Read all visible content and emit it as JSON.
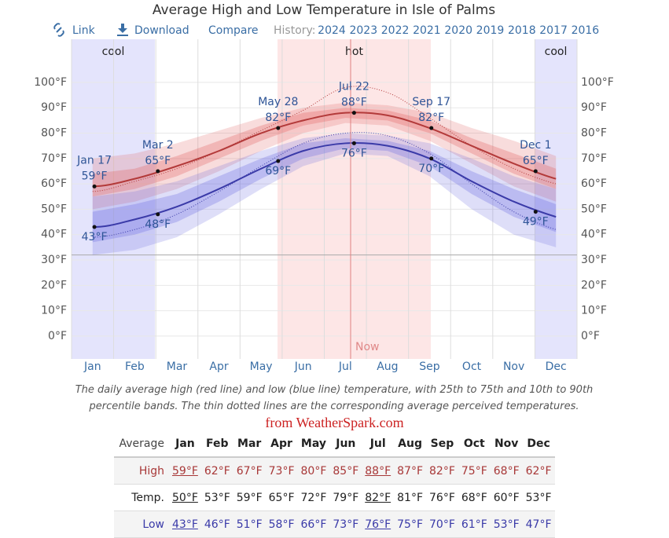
{
  "nav": {
    "link": "Link",
    "download": "Download",
    "compare": "Compare",
    "history": "History:",
    "years": [
      "2024",
      "2023",
      "2022",
      "2021",
      "2020",
      "2019",
      "2018",
      "2017",
      "2016"
    ]
  },
  "chart_data": {
    "type": "line",
    "title": "Average High and Low Temperature in Isle of Palms",
    "categories": [
      "Jan",
      "Feb",
      "Mar",
      "Apr",
      "May",
      "Jun",
      "Jul",
      "Aug",
      "Sep",
      "Oct",
      "Nov",
      "Dec"
    ],
    "ylim": [
      -9,
      117
    ],
    "yticks": [
      {
        "value": 0,
        "label": "0°F"
      },
      {
        "value": 10,
        "label": "10°F"
      },
      {
        "value": 20,
        "label": "20°F"
      },
      {
        "value": 30,
        "label": "30°F"
      },
      {
        "value": 40,
        "label": "40°F"
      },
      {
        "value": 50,
        "label": "50°F"
      },
      {
        "value": 60,
        "label": "60°F"
      },
      {
        "value": 70,
        "label": "70°F"
      },
      {
        "value": 80,
        "label": "80°F"
      },
      {
        "value": 90,
        "label": "90°F"
      },
      {
        "value": 100,
        "label": "100°F"
      }
    ],
    "grid": true,
    "seasons": [
      "cool",
      "hot",
      "cool"
    ],
    "now_label": "Now",
    "reference_line": 32,
    "series": [
      {
        "color": "#b33a3a",
        "band_color": "#e06060",
        "values": [
          59,
          62,
          67,
          73,
          80,
          85,
          88,
          87,
          82,
          75,
          68,
          62
        ],
        "p10": [
          50,
          53,
          58,
          65,
          73,
          80,
          84,
          83,
          77,
          68,
          59,
          53
        ],
        "p25": [
          55,
          58,
          63,
          70,
          77,
          83,
          86,
          85,
          80,
          72,
          64,
          58
        ],
        "p75": [
          64,
          66,
          71,
          77,
          83,
          88,
          90,
          89,
          85,
          78,
          72,
          66
        ],
        "p90": [
          70,
          72,
          76,
          81,
          86,
          90,
          92,
          91,
          88,
          82,
          77,
          71
        ],
        "perceived": [
          57,
          61,
          66,
          73,
          81,
          89,
          98,
          96,
          86,
          75,
          66,
          60
        ]
      },
      {
        "color": "#3a3aa8",
        "band_color": "#6a6ae0",
        "values": [
          43,
          46,
          51,
          58,
          66,
          73,
          76,
          75,
          70,
          61,
          53,
          47
        ],
        "p10": [
          32,
          34,
          39,
          48,
          58,
          67,
          72,
          71,
          63,
          50,
          40,
          35
        ],
        "p25": [
          37,
          40,
          45,
          53,
          62,
          70,
          74,
          73,
          67,
          56,
          47,
          41
        ],
        "p75": [
          49,
          52,
          56,
          63,
          70,
          76,
          78,
          77,
          73,
          65,
          58,
          52
        ],
        "p90": [
          55,
          57,
          61,
          67,
          73,
          78,
          80,
          79,
          76,
          70,
          63,
          58
        ],
        "perceived": [
          39,
          42,
          48,
          57,
          67,
          76,
          80,
          79,
          72,
          60,
          49,
          42
        ]
      }
    ],
    "annotations": [
      {
        "date": "Jan 17",
        "high": 59,
        "high_label": "59°F",
        "low": 43,
        "low_label": "43°F"
      },
      {
        "date": "Mar 2",
        "high": 65,
        "high_label": "65°F",
        "low": 48,
        "low_label": "48°F"
      },
      {
        "date": "May 28",
        "high": 82,
        "high_label": "82°F",
        "low": 69,
        "low_label": "69°F"
      },
      {
        "date": "Jul 22",
        "high": 88,
        "high_label": "88°F",
        "low": 76,
        "low_label": "76°F"
      },
      {
        "date": "Sep 17",
        "high": 82,
        "high_label": "82°F",
        "low": 70,
        "low_label": "70°F"
      },
      {
        "date": "Dec 1",
        "high": 65,
        "high_label": "65°F",
        "low": 49,
        "low_label": "49°F"
      }
    ]
  },
  "caption": "The daily average high (red line) and low (blue line) temperature, with 25th to 75th and 10th to 90th percentile bands. The thin dotted lines are the corresponding average perceived temperatures.",
  "source": "from WeatherSpark.com",
  "table": {
    "header": [
      "Average",
      "Jan",
      "Feb",
      "Mar",
      "Apr",
      "May",
      "Jun",
      "Jul",
      "Aug",
      "Sep",
      "Oct",
      "Nov",
      "Dec"
    ],
    "rows": [
      [
        "High",
        "59°F",
        "62°F",
        "67°F",
        "73°F",
        "80°F",
        "85°F",
        "88°F",
        "87°F",
        "82°F",
        "75°F",
        "68°F",
        "62°F"
      ],
      [
        "Temp.",
        "50°F",
        "53°F",
        "59°F",
        "65°F",
        "72°F",
        "79°F",
        "82°F",
        "81°F",
        "76°F",
        "68°F",
        "60°F",
        "53°F"
      ],
      [
        "Low",
        "43°F",
        "46°F",
        "51°F",
        "58°F",
        "66°F",
        "73°F",
        "76°F",
        "75°F",
        "70°F",
        "61°F",
        "53°F",
        "47°F"
      ]
    ]
  }
}
